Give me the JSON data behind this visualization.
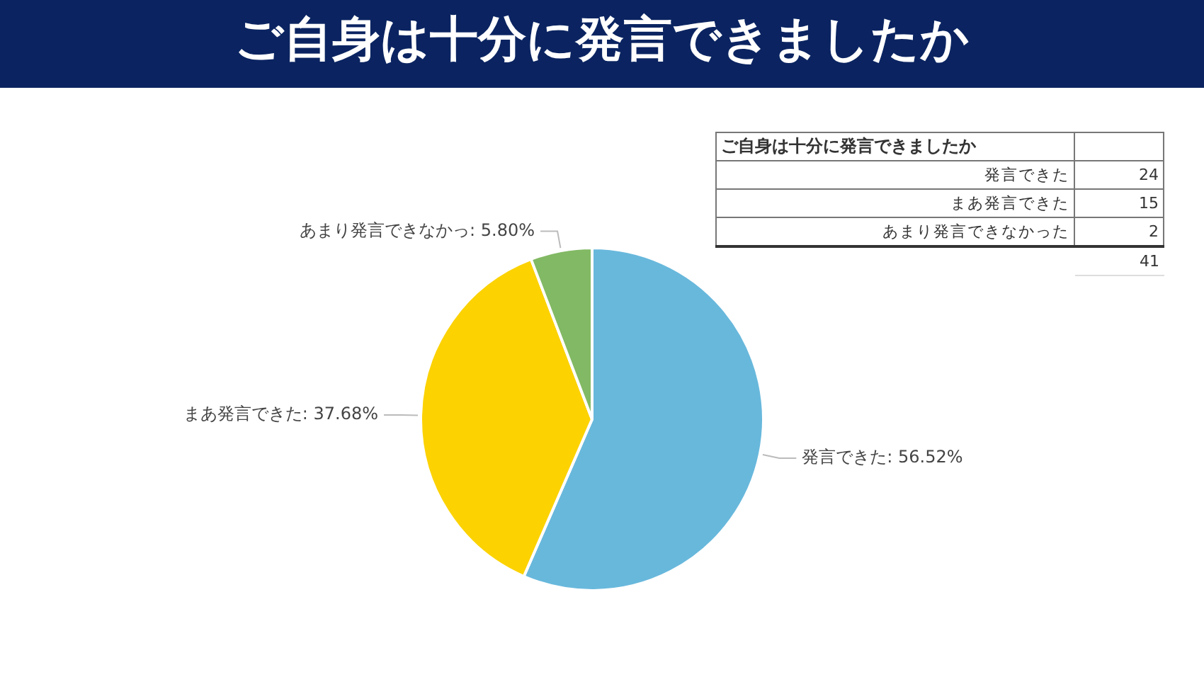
{
  "chart_data": {
    "type": "pie",
    "title": "ご自身は十分に発言できましたか",
    "categories": [
      "発言できた",
      "まあ発言できた",
      "あまり発言できなかっ"
    ],
    "values": [
      56.52,
      37.68,
      5.8
    ],
    "value_labels": [
      ": 56.52%",
      ": 37.68%",
      ": 5.80%"
    ],
    "colors": [
      "#68b8dc",
      "#fcd200",
      "#82b964"
    ],
    "annotations": [
      "ご自身は十分に発言できましたか",
      "発言できた",
      "24",
      "まあ発言できた",
      "15",
      "あまり発言できなかった",
      "2",
      "41"
    ]
  }
}
